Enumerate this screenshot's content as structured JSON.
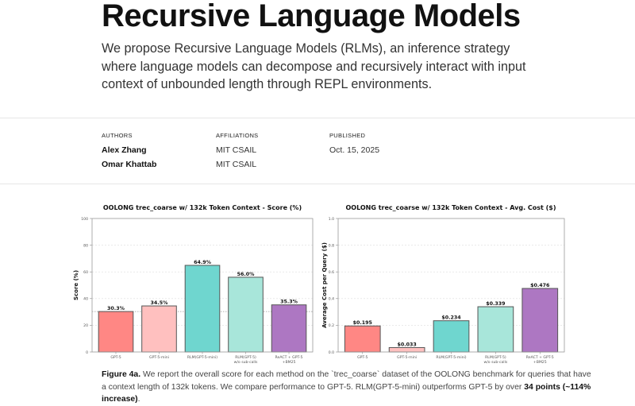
{
  "header": {
    "title": "Recursive Language Models",
    "abstract": "We propose Recursive Language Models (RLMs), an inference strategy where language models can decompose and recursively interact with input context of unbounded length through REPL environments."
  },
  "meta": {
    "authors_label": "AUTHORS",
    "affiliations_label": "AFFILIATIONS",
    "published_label": "PUBLISHED",
    "authors": [
      {
        "name": "Alex Zhang",
        "affiliation": "MIT CSAIL"
      },
      {
        "name": "Omar Khattab",
        "affiliation": "MIT CSAIL"
      }
    ],
    "published": "Oct. 15, 2025"
  },
  "colors": {
    "gpt5": "#ff8784",
    "gpt5_mini": "#ffc0bf",
    "rlm_gpt5_mini": "#6fd6cf",
    "rlm_no_subcalls": "#a8e6da",
    "react": "#ad77c2",
    "edge": "#555555"
  },
  "chart_data": [
    {
      "type": "bar",
      "title": "OOLONG trec_coarse w/ 132k Token Context - Score (%)",
      "xlabel": "",
      "ylabel": "Score (%)",
      "categories": [
        "GPT-5",
        "GPT-5-mini",
        "RLM(GPT-5-mini)",
        "RLM(GPT-5)\nw/o sub-calls",
        "ReACT + GPT-5\n+BM25"
      ],
      "values": [
        30.3,
        34.5,
        64.9,
        56.0,
        35.3
      ],
      "data_labels": [
        "30.3%",
        "34.5%",
        "64.9%",
        "56.0%",
        "35.3%"
      ],
      "ylim": [
        0,
        100
      ],
      "yticks": [
        0,
        20,
        40,
        60,
        80,
        100
      ],
      "ytick_labels": [
        "0",
        "20",
        "40",
        "60",
        "80",
        "100"
      ],
      "reference_line": 30.3,
      "grid": true
    },
    {
      "type": "bar",
      "title": "OOLONG trec_coarse w/ 132k Token Context - Avg. Cost ($)",
      "xlabel": "",
      "ylabel": "Average Cost per Query ($)",
      "categories": [
        "GPT-5",
        "GPT-5-mini",
        "RLM(GPT-5-mini)",
        "RLM(GPT-5)\nw/o sub-calls",
        "ReACT + GPT-5\n+BM25"
      ],
      "values": [
        0.195,
        0.033,
        0.234,
        0.339,
        0.476
      ],
      "data_labels": [
        "$0.195",
        "$0.033",
        "$0.234",
        "$0.339",
        "$0.476"
      ],
      "ylim": [
        0,
        1.0
      ],
      "yticks": [
        0,
        0.2,
        0.4,
        0.6,
        0.8,
        1.0
      ],
      "ytick_labels": [
        "0.0",
        "0.2",
        "0.4",
        "0.6",
        "0.8",
        "1.0"
      ],
      "grid": true
    }
  ],
  "caption": {
    "label": "Figure 4a.",
    "text_1": " We report the overall score for each method on the `trec_coarse` dataset of the OOLONG benchmark for queries that have a context length of 132k tokens. We compare performance to GPT-5. RLM(GPT-5-mini) outperforms GPT-5 by over ",
    "bold": "34 points (~114% increase)",
    "text_2": "."
  }
}
